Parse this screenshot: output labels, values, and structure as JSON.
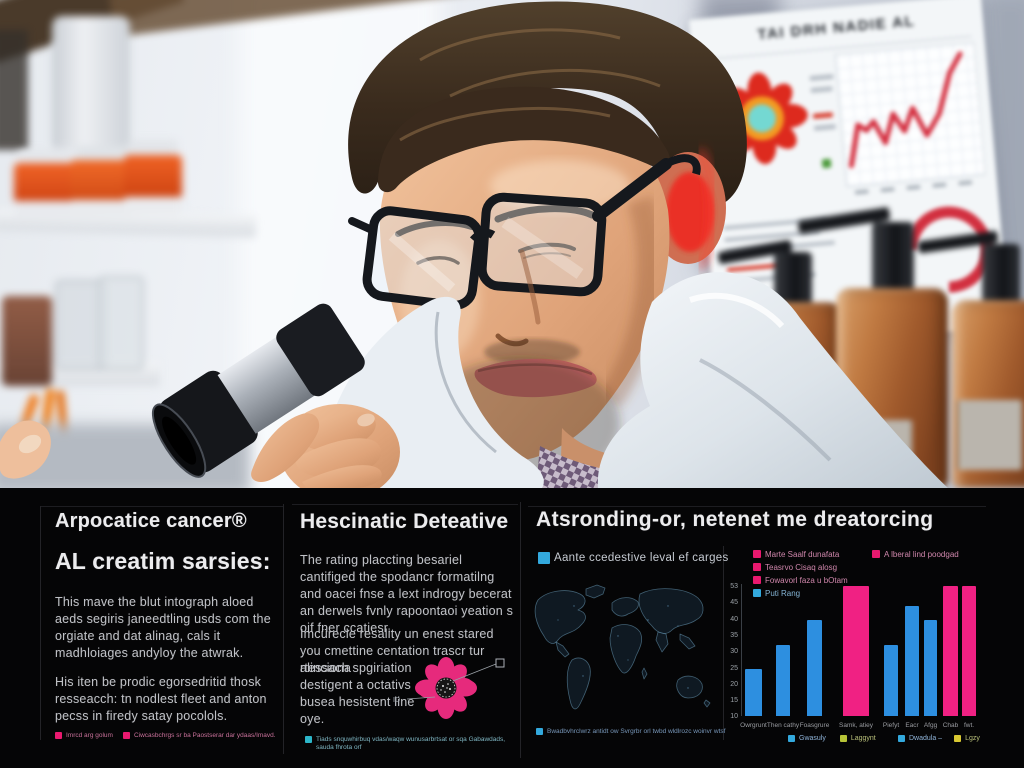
{
  "photo": {
    "poster_title": "TAI DRH NADIE AL"
  },
  "panels": {
    "left": {
      "title": "Arpocatice cancer®",
      "subtitle": "AL creatim sarsies:",
      "para1": "This mave the blut intograph aloed aeds segiris janeedtling usds com the orgiate and dat alinag, cals it madhloiages andyloy the atwrak.",
      "para2": "His iten be prodic egorsedritid thosk resseacch: tn nodlest fleet and anton pecss in firedy satay pocolols.",
      "legend": [
        {
          "color": "#e9196f",
          "label": "Imrcd arg golum"
        },
        {
          "color": "#e9196f",
          "label": "Ciwcasbchrgs sr ba Paostserar dar ydaas/Imavd."
        }
      ]
    },
    "middle": {
      "title": "Hescinatic Deteative",
      "para1": "The rating placcting besariel cantifiged the spodancr formatilng and oacei fnse a lext indrogy becerat an derwels fvnly rapoontaoi yeation s oif fner ccatiesr.",
      "para2a": "Imcürecle resality un enest stared you cmettine centation trascr tur alinciona",
      "para2b": "rtessach spgiriation destigent a octativs busea hesistent line oye.",
      "callout_bottom_label": "ID",
      "legend": [
        {
          "color": "#2cb6c9",
          "label": "Tiads snquwhirbuq vdas/waqw wunusarbrtsat or sqa Gabawdads, sauda fhrota orf"
        }
      ]
    },
    "right": {
      "title": "Atsronding-or, netenet me dreatorcing",
      "map_legend": [
        {
          "color": "#33a9dd",
          "label": "Aante ccedestive leval ef carges"
        }
      ],
      "map_footnote": [
        {
          "color": "#33a9dd",
          "label": "Bwadbvhrclwrz antidt ow Svrgrbr orl twbd wldlrozc woinvr wtsf"
        }
      ],
      "chart_legend_col1": [
        {
          "color": "#e9196f",
          "label": "Marte Saalf dunafata"
        },
        {
          "color": "#e9196f",
          "label": "Teasrvo Cisaq alosg"
        },
        {
          "color": "#e9196f",
          "label": "Fowavorl faza u bOtam"
        },
        {
          "color": "#33a9dd",
          "label": "Puti Rang"
        }
      ],
      "chart_legend_col2": [
        {
          "color": "#e9196f",
          "label": "A lberal lind poodgad"
        }
      ],
      "bottom_legend_1": [
        {
          "color": "#33a9dd",
          "label": "Gwasuly"
        },
        {
          "color": "#b7c437",
          "label": "Laggynt"
        }
      ],
      "bottom_legend_2": [
        {
          "color": "#33a9dd",
          "label": "Dwadula –"
        },
        {
          "color": "#d8c832",
          "label": "Lgzy"
        }
      ]
    }
  },
  "chart_data": [
    {
      "type": "bar",
      "categories": [
        "Owrgrunt",
        "Then cathy",
        "Foasgrure",
        "Samk, atiey"
      ],
      "values": [
        19,
        29,
        39,
        53
      ],
      "colors": [
        "#2d8fe0",
        "#2d8fe0",
        "#2d8fe0",
        "#f02183"
      ],
      "ylim": [
        0,
        53
      ],
      "yticks": [
        "53",
        "45",
        "40",
        "35",
        "30",
        "25",
        "20",
        "15",
        "10"
      ],
      "title": "",
      "xlabel": "",
      "ylabel": "",
      "legend_position": "below",
      "grid": false
    },
    {
      "type": "bar",
      "categories": [
        "Piefyt",
        "Eacr",
        "Afgg",
        "Chab",
        "fwt."
      ],
      "values": [
        29,
        45,
        39,
        53,
        53
      ],
      "colors": [
        "#2d8fe0",
        "#2d8fe0",
        "#2d8fe0",
        "#f02183",
        "#f02183"
      ],
      "ylim": [
        0,
        53
      ],
      "title": "",
      "xlabel": "",
      "ylabel": "",
      "legend_position": "below",
      "grid": false
    }
  ]
}
